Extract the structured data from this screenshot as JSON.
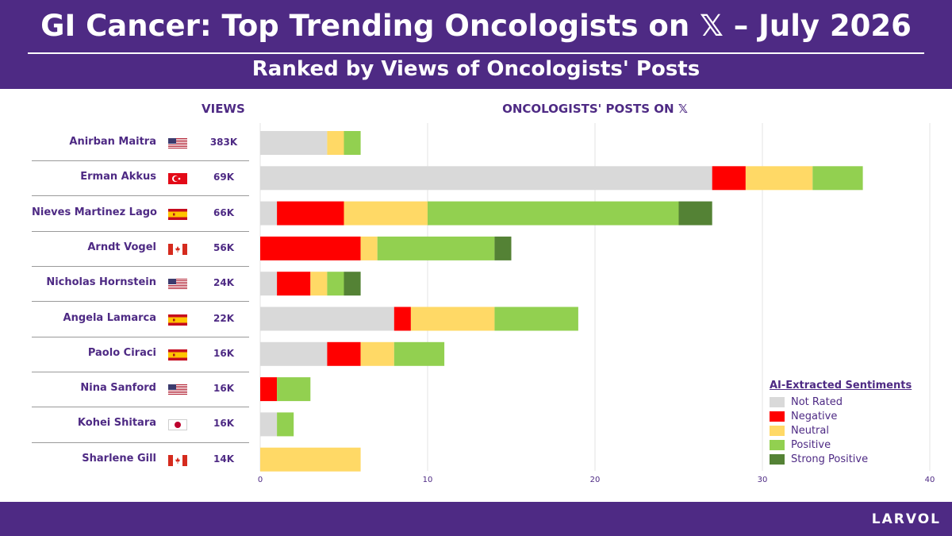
{
  "header": {
    "title": "GI Cancer: Top Trending Oncologists on 𝕏 – July 2026",
    "subtitle": "Ranked by Views of Oncologists' Posts"
  },
  "columns": {
    "views": "VIEWS",
    "posts": "ONCOLOGISTS' POSTS ON 𝕏"
  },
  "brand": "LARVOL",
  "colors": {
    "brand": "#4e2a84",
    "not_rated": "#d9d9d9",
    "negative": "#ff0000",
    "neutral": "#ffd966",
    "positive": "#92d050",
    "strong_positive": "#548235"
  },
  "chart_data": {
    "type": "bar",
    "orientation": "horizontal",
    "stacked": true,
    "categories": [
      "Anirban Maitra",
      "Erman Akkus",
      "Nieves Martinez Lago",
      "Arndt Vogel",
      "Nicholas Hornstein",
      "Angela Lamarca",
      "Paolo Ciraci",
      "Nina Sanford",
      "Kohei Shitara",
      "Sharlene Gill"
    ],
    "flags": [
      "us-flag-icon",
      "turkey-flag-icon",
      "spain-flag-icon",
      "canada-flag-icon",
      "us-flag-icon",
      "spain-flag-icon",
      "spain-flag-icon",
      "us-flag-icon",
      "japan-flag-icon",
      "canada-flag-icon"
    ],
    "views": [
      "383K",
      "69K",
      "66K",
      "56K",
      "24K",
      "22K",
      "16K",
      "16K",
      "16K",
      "14K"
    ],
    "series": [
      {
        "name": "Not Rated",
        "key": "not_rated",
        "values": [
          4,
          27,
          1,
          0,
          1,
          8,
          4,
          0,
          1,
          0
        ]
      },
      {
        "name": "Negative",
        "key": "negative",
        "values": [
          0,
          2,
          4,
          6,
          2,
          1,
          2,
          1,
          0,
          0
        ]
      },
      {
        "name": "Neutral",
        "key": "neutral",
        "values": [
          1,
          4,
          5,
          1,
          1,
          5,
          2,
          0,
          0,
          6
        ]
      },
      {
        "name": "Positive",
        "key": "positive",
        "values": [
          1,
          3,
          15,
          7,
          1,
          5,
          3,
          2,
          1,
          0
        ]
      },
      {
        "name": "Strong Positive",
        "key": "strong_positive",
        "values": [
          0,
          0,
          2,
          1,
          1,
          0,
          0,
          0,
          0,
          0
        ]
      }
    ],
    "xlim": [
      0,
      40
    ],
    "xticks": [
      0,
      10,
      20,
      30,
      40
    ],
    "grid": true,
    "legend": {
      "title": "AI-Extracted Sentiments",
      "placement": "bottom-right"
    }
  }
}
